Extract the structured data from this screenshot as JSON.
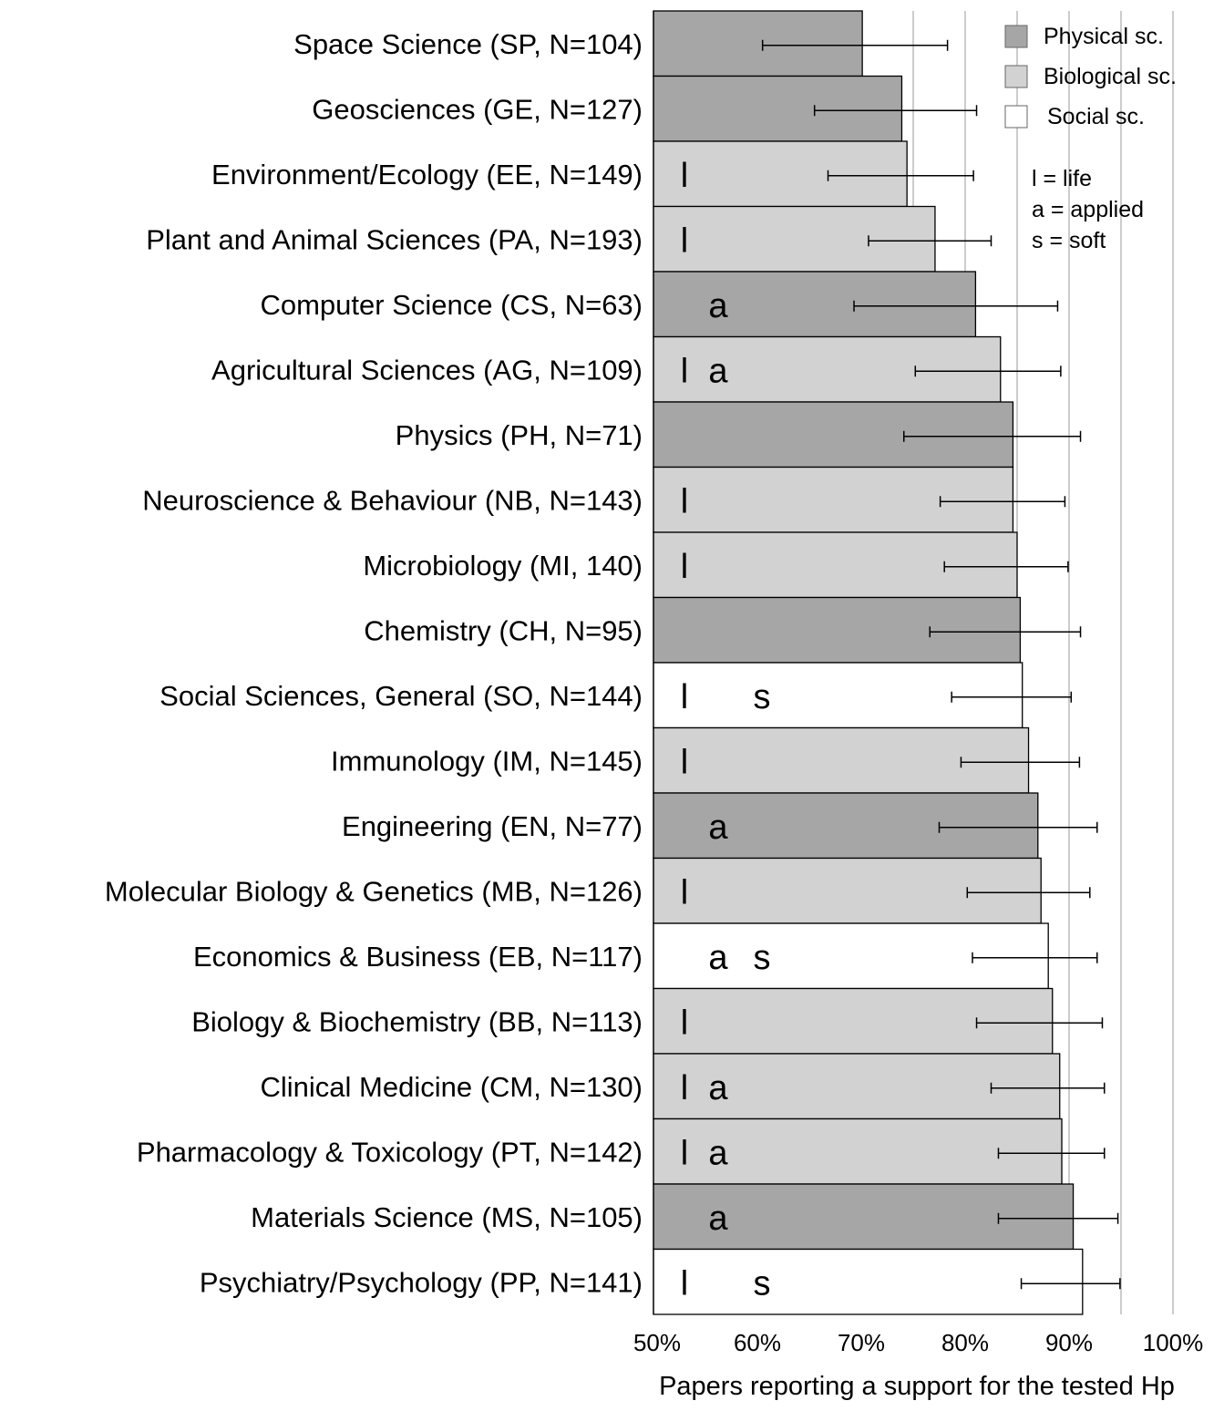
{
  "chart_data": {
    "type": "bar",
    "orientation": "horizontal",
    "xlabel": "Papers reporting a support for the tested Hp",
    "xlim": [
      50,
      100
    ],
    "xticks": [
      "50%",
      "60%",
      "70%",
      "80%",
      "90%",
      "100%"
    ],
    "grid": true,
    "legend_position": "top-right",
    "legend": [
      {
        "name": "Physical sc.",
        "key": "physical",
        "color": "#a6a6a6"
      },
      {
        "name": "Biological sc.",
        "key": "biological",
        "color": "#d2d2d2"
      },
      {
        "name": "Social sc.",
        "key": "social",
        "color": "#ffffff"
      }
    ],
    "notes": [
      "l  = life",
      "a = applied",
      "s = soft"
    ],
    "categories": [
      {
        "label": "Space Science (SP, N=104)",
        "group": "physical",
        "value": 70.1,
        "ci": [
          60.5,
          78.3
        ],
        "life": "",
        "applied": "",
        "soft": ""
      },
      {
        "label": "Geosciences (GE, N=127)",
        "group": "physical",
        "value": 73.9,
        "ci": [
          65.5,
          81.1
        ],
        "life": "",
        "applied": "",
        "soft": ""
      },
      {
        "label": "Environment/Ecology (EE, N=149)",
        "group": "biological",
        "value": 74.4,
        "ci": [
          66.8,
          80.8
        ],
        "life": "l",
        "applied": "",
        "soft": ""
      },
      {
        "label": "Plant and Animal Sciences (PA, N=193)",
        "group": "biological",
        "value": 77.1,
        "ci": [
          70.7,
          82.5
        ],
        "life": "l",
        "applied": "",
        "soft": ""
      },
      {
        "label": "Computer Science (CS, N=63)",
        "group": "physical",
        "value": 81.0,
        "ci": [
          69.3,
          88.9
        ],
        "life": "",
        "applied": "a",
        "soft": ""
      },
      {
        "label": "Agricultural Sciences (AG, N=109)",
        "group": "biological",
        "value": 83.4,
        "ci": [
          75.2,
          89.2
        ],
        "life": "l",
        "applied": "a",
        "soft": ""
      },
      {
        "label": "Physics (PH, N=71)",
        "group": "physical",
        "value": 84.6,
        "ci": [
          74.1,
          91.1
        ],
        "life": "",
        "applied": "",
        "soft": ""
      },
      {
        "label": "Neuroscience & Behaviour (NB, N=143)",
        "group": "biological",
        "value": 84.6,
        "ci": [
          77.6,
          89.6
        ],
        "life": "l",
        "applied": "",
        "soft": ""
      },
      {
        "label": "Microbiology (MI, 140)",
        "group": "biological",
        "value": 85.0,
        "ci": [
          78.0,
          89.9
        ],
        "life": "l",
        "applied": "",
        "soft": ""
      },
      {
        "label": "Chemistry (CH, N=95)",
        "group": "physical",
        "value": 85.3,
        "ci": [
          76.6,
          91.1
        ],
        "life": "",
        "applied": "",
        "soft": ""
      },
      {
        "label": "Social Sciences, General (SO, N=144)",
        "group": "social",
        "value": 85.5,
        "ci": [
          78.7,
          90.2
        ],
        "life": "l",
        "applied": "",
        "soft": "s"
      },
      {
        "label": "Immunology (IM, N=145)",
        "group": "biological",
        "value": 86.1,
        "ci": [
          79.6,
          91.0
        ],
        "life": "l",
        "applied": "",
        "soft": ""
      },
      {
        "label": "Engineering (EN, N=77)",
        "group": "physical",
        "value": 87.0,
        "ci": [
          77.5,
          92.7
        ],
        "life": "",
        "applied": "a",
        "soft": ""
      },
      {
        "label": "Molecular Biology & Genetics (MB, N=126)",
        "group": "biological",
        "value": 87.3,
        "ci": [
          80.2,
          92.0
        ],
        "life": "l",
        "applied": "",
        "soft": ""
      },
      {
        "label": "Economics & Business (EB, N=117)",
        "group": "social",
        "value": 88.0,
        "ci": [
          80.7,
          92.7
        ],
        "life": "",
        "applied": "a",
        "soft": "s"
      },
      {
        "label": "Biology & Biochemistry (BB, N=113)",
        "group": "biological",
        "value": 88.4,
        "ci": [
          81.1,
          93.2
        ],
        "life": "l",
        "applied": "",
        "soft": ""
      },
      {
        "label": "Clinical Medicine (CM, N=130)",
        "group": "biological",
        "value": 89.1,
        "ci": [
          82.5,
          93.4
        ],
        "life": "l",
        "applied": "a",
        "soft": ""
      },
      {
        "label": "Pharmacology & Toxicology (PT, N=142)",
        "group": "biological",
        "value": 89.3,
        "ci": [
          83.2,
          93.4
        ],
        "life": "l",
        "applied": "a",
        "soft": ""
      },
      {
        "label": "Materials Science (MS, N=105)",
        "group": "physical",
        "value": 90.4,
        "ci": [
          83.2,
          94.7
        ],
        "life": "",
        "applied": "a",
        "soft": ""
      },
      {
        "label": "Psychiatry/Psychology (PP, N=141)",
        "group": "social",
        "value": 91.3,
        "ci": [
          85.4,
          94.9
        ],
        "life": "l",
        "applied": "",
        "soft": "s"
      }
    ]
  }
}
